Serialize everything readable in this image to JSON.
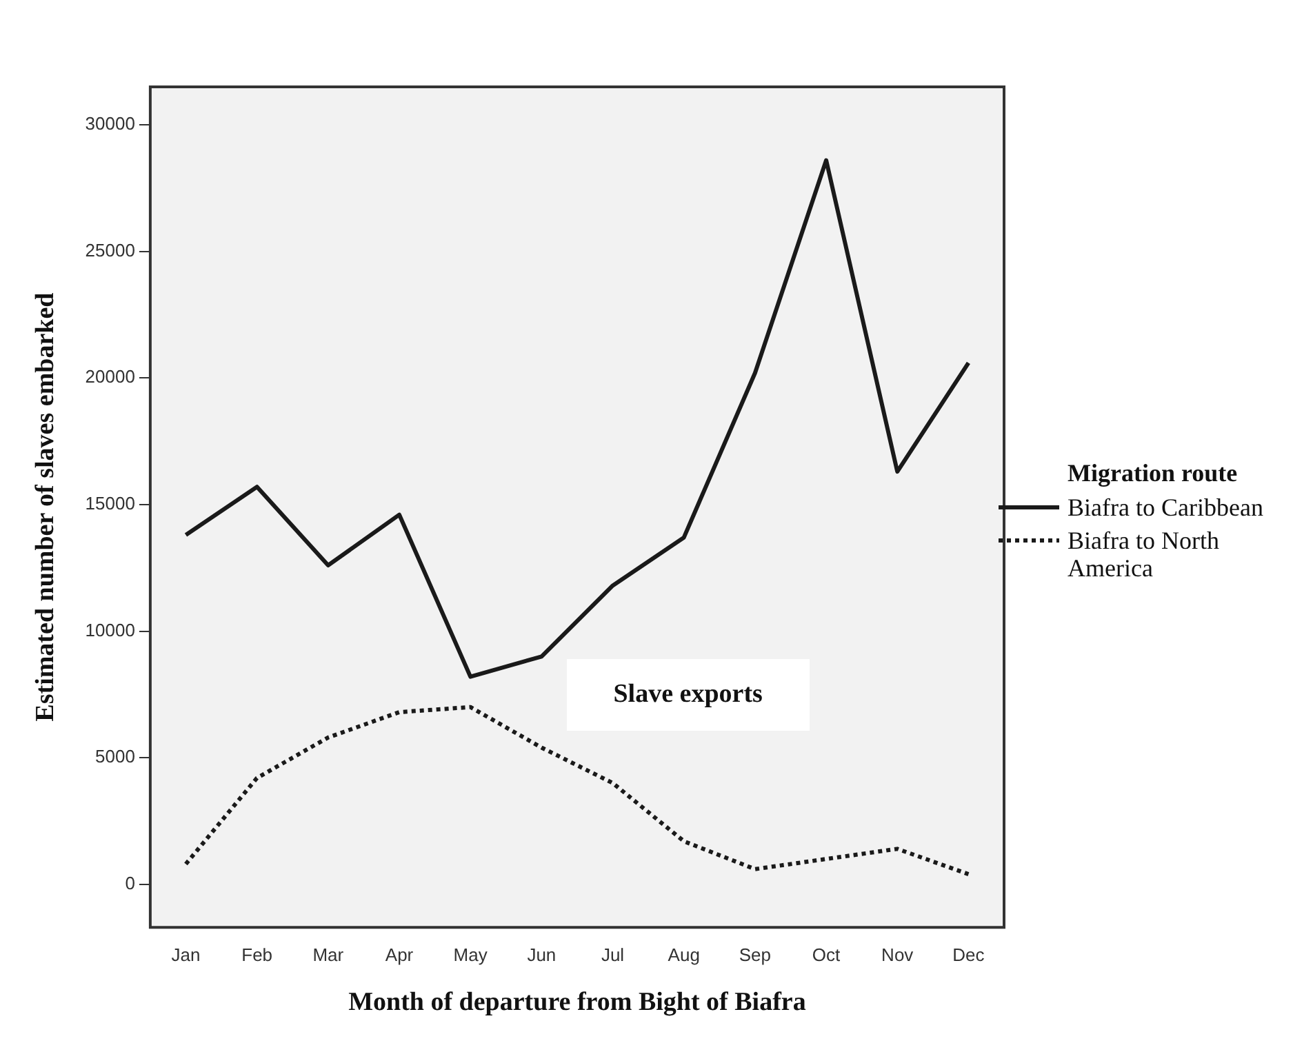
{
  "chart_data": {
    "type": "line",
    "xlabel": "Month of departure from Bight of Biafra",
    "ylabel": "Estimated number of slaves embarked",
    "legend_title": "Migration route",
    "legend": "right",
    "annotations": [
      "Slave exports"
    ],
    "categories": [
      "Jan",
      "Feb",
      "Mar",
      "Apr",
      "May",
      "Jun",
      "Jul",
      "Aug",
      "Sep",
      "Oct",
      "Nov",
      "Dec"
    ],
    "ylim": [
      -1700,
      31500
    ],
    "yticks": [
      0,
      5000,
      10000,
      15000,
      20000,
      25000,
      30000
    ],
    "grid": false,
    "marker": "none",
    "series": [
      {
        "name": "Biafra to Caribbean",
        "color": "#1a1a1a",
        "line_style": "solid",
        "values": [
          13800,
          15700,
          12600,
          14600,
          8200,
          9000,
          11800,
          13700,
          20200,
          28600,
          16300,
          20600
        ]
      },
      {
        "name": "Biafra to North America",
        "color": "#1a1a1a",
        "line_style": "dotted",
        "values": [
          800,
          4200,
          5800,
          6800,
          7000,
          5400,
          4000,
          1700,
          600,
          1000,
          1400,
          400
        ]
      }
    ]
  }
}
